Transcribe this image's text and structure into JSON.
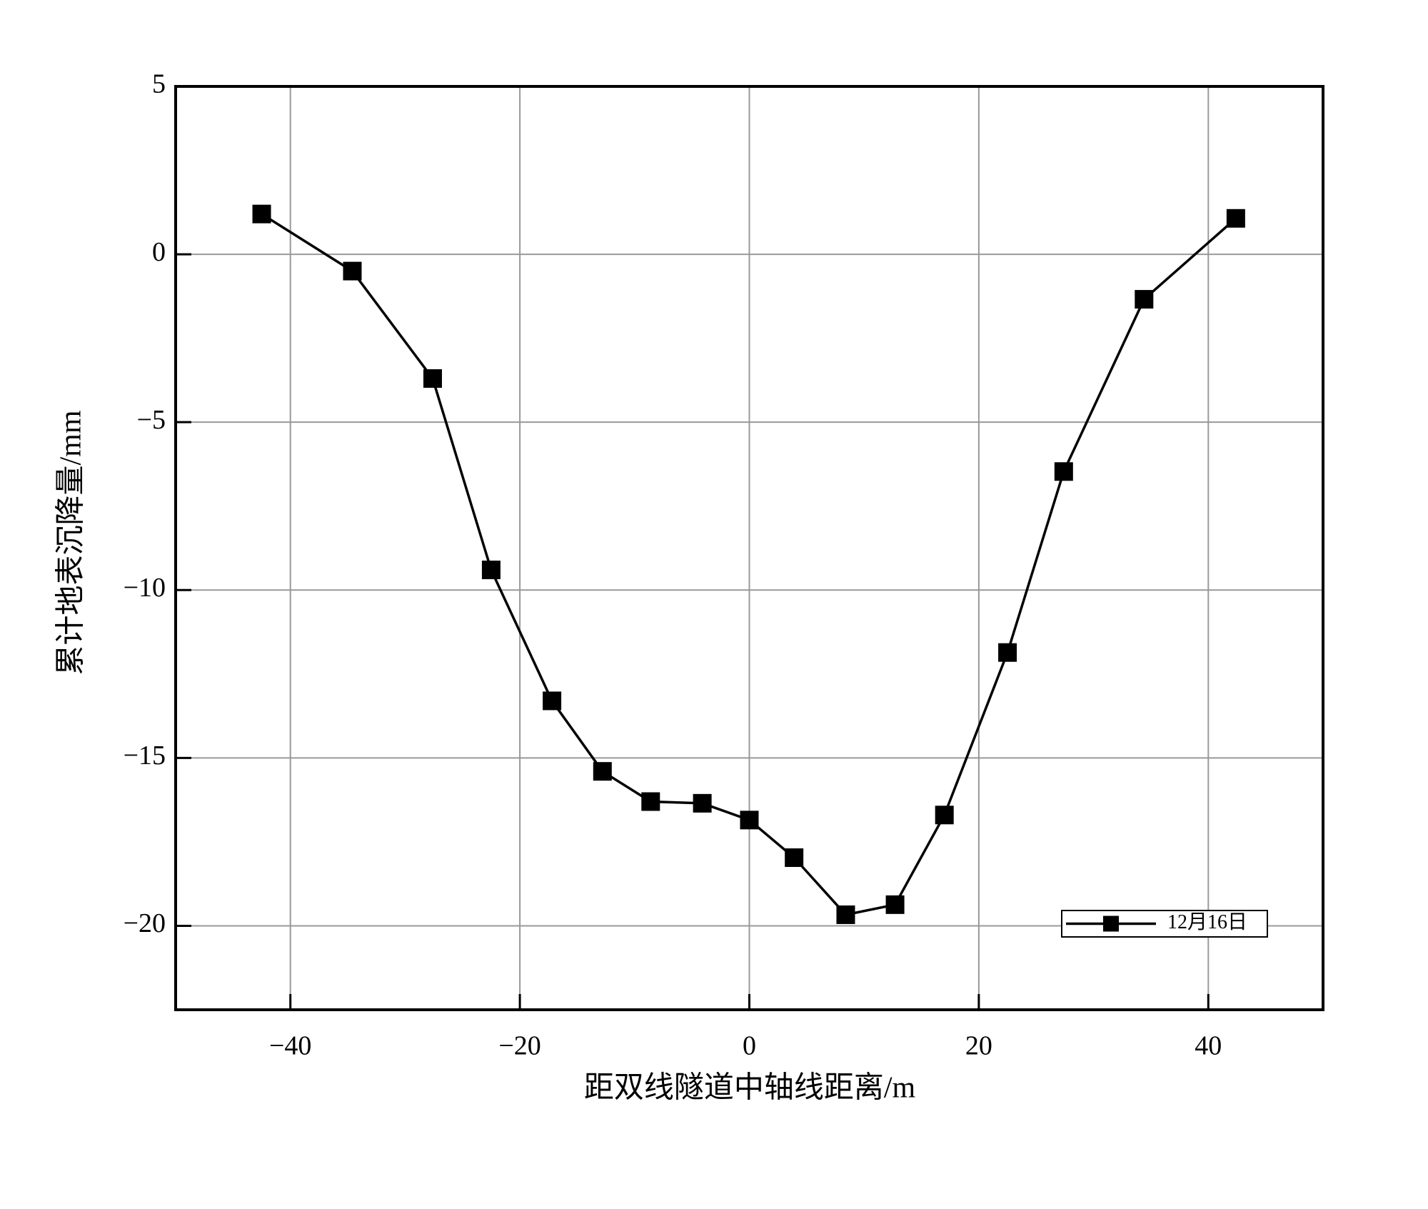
{
  "chart_data": {
    "type": "line",
    "xlabel": "距双线隧道中轴线距离/m",
    "ylabel": "累计地表沉降量/mm",
    "x": [
      -42.5,
      -34.6,
      -27.6,
      -22.5,
      -17.2,
      -12.8,
      -8.6,
      -4.1,
      0,
      3.9,
      8.4,
      12.7,
      17.0,
      22.5,
      27.4,
      34.4,
      42.4
    ],
    "series": [
      {
        "name": "12月16日",
        "color": "#000000",
        "values": [
          1.2,
          -0.5,
          -3.7,
          -9.4,
          -13.3,
          -15.4,
          -16.3,
          -16.35,
          -16.85,
          -17.97,
          -19.67,
          -19.37,
          -16.7,
          -11.86,
          -6.47,
          -1.34,
          1.07
        ]
      }
    ],
    "xlim": [
      -50,
      50
    ],
    "xticks": [
      {
        "value": -40,
        "label": "−40"
      },
      {
        "value": -20,
        "label": "−20"
      },
      0,
      20,
      40
    ],
    "ylim": [
      -22.5,
      5
    ],
    "yticks": [
      5,
      0,
      {
        "value": -5,
        "label": "−5"
      },
      {
        "value": -10,
        "label": "−10"
      },
      {
        "value": -15,
        "label": "−15"
      },
      {
        "value": -20,
        "label": "−20"
      }
    ],
    "grid": true,
    "legend": "lower right"
  }
}
